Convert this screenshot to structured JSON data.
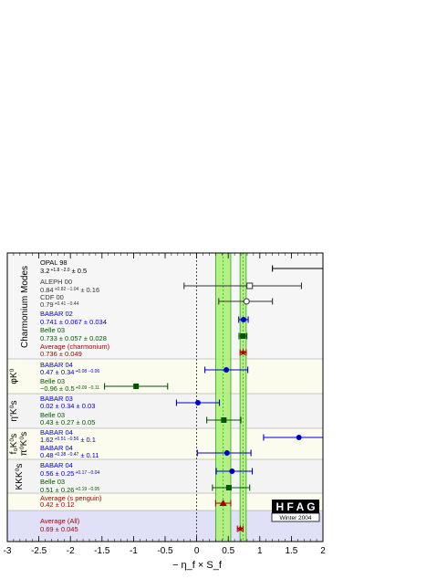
{
  "chart_data": {
    "type": "scatter",
    "xlabel": "− η_f × S_f",
    "xlim": [
      -3,
      2
    ],
    "x_ticks": [
      "-3",
      "-2.5",
      "-2",
      "-1.5",
      "-1",
      "-0.5",
      "0",
      "0.5",
      "1",
      "1.5",
      "2"
    ],
    "categories": [
      "Charmonium Modes",
      "φK⁰",
      "η′K⁰s",
      "f₀K⁰s",
      "π⁰K⁰s",
      "KKK⁰s"
    ],
    "bands": [
      {
        "center": 0.42,
        "low": 0.3,
        "high": 0.54
      },
      {
        "center": 0.736,
        "low": 0.687,
        "high": 0.785
      }
    ],
    "logo": {
      "text": "H F A G",
      "subtitle": "Winter 2004"
    },
    "points": [
      {
        "name": "OPAL 98",
        "value_text": "3.2",
        "err_text": "+1.8 −2.0",
        "extra_text": "± 0.5",
        "value": 3.2,
        "low": 1.2,
        "high": 5.0,
        "color": "#000000",
        "marker": "none"
      },
      {
        "name": "ALEPH 00",
        "value_text": "0.84",
        "err_text": "+0.82 −1.04",
        "extra_text": "± 0.16",
        "value": 0.84,
        "low": -0.2,
        "high": 1.66,
        "color": "#333333",
        "marker": "square-open"
      },
      {
        "name": "CDF 00",
        "value_text": "0.79",
        "err_text": "+0.41 −0.44",
        "extra_text": "",
        "value": 0.79,
        "low": 0.35,
        "high": 1.2,
        "color": "#333333",
        "marker": "circle-open"
      },
      {
        "name": "BABAR 02",
        "value_text": "0.741 ± 0.067 ± 0.034",
        "err_text": "",
        "extra_text": "",
        "value": 0.741,
        "low": 0.666,
        "high": 0.816,
        "color": "#0000cc",
        "marker": "circle"
      },
      {
        "name": "Belle 03",
        "value_text": "0.733 ± 0.057 ± 0.028",
        "err_text": "",
        "extra_text": "",
        "value": 0.733,
        "low": 0.67,
        "high": 0.796,
        "color": "#005500",
        "marker": "square"
      },
      {
        "name": "Average (charmonium)",
        "value_text": "0.736 ± 0.049",
        "err_text": "",
        "extra_text": "",
        "value": 0.736,
        "low": 0.687,
        "high": 0.785,
        "color": "#aa0000",
        "marker": "star"
      },
      {
        "name": "BABAR 04",
        "value_text": "0.47 ± 0.34",
        "err_text": "+0.08 −0.06",
        "extra_text": "",
        "value": 0.47,
        "low": 0.13,
        "high": 0.81,
        "color": "#0000cc",
        "marker": "circle"
      },
      {
        "name": "Belle 03",
        "value_text": "−0.96 ± 0.5",
        "err_text": "+0.09 −0.11",
        "extra_text": "",
        "value": -0.96,
        "low": -1.46,
        "high": -0.46,
        "color": "#005500",
        "marker": "square"
      },
      {
        "name": "BABAR 03",
        "value_text": "0.02 ± 0.34 ± 0.03",
        "err_text": "",
        "extra_text": "",
        "value": 0.02,
        "low": -0.32,
        "high": 0.36,
        "color": "#0000cc",
        "marker": "circle"
      },
      {
        "name": "Belle 03",
        "value_text": "0.43 ± 0.27 ± 0.05",
        "err_text": "",
        "extra_text": "",
        "value": 0.43,
        "low": 0.16,
        "high": 0.7,
        "color": "#005500",
        "marker": "square"
      },
      {
        "name": "BABAR 04",
        "value_text": "1.62",
        "err_text": "+0.51 −0.56",
        "extra_text": "± 0.1",
        "value": 1.62,
        "low": 1.06,
        "high": 2.13,
        "color": "#0000cc",
        "marker": "circle"
      },
      {
        "name": "BABAR 04",
        "value_text": "0.48",
        "err_text": "+0.38 −0.47",
        "extra_text": "± 0.11",
        "value": 0.48,
        "low": 0.01,
        "high": 0.86,
        "color": "#0000cc",
        "marker": "circle"
      },
      {
        "name": "BABAR 04",
        "value_text": "0.56 ± 0.25",
        "err_text": "+0.17 −0.04",
        "extra_text": "",
        "value": 0.56,
        "low": 0.31,
        "high": 0.88,
        "color": "#0000cc",
        "marker": "circle"
      },
      {
        "name": "Belle 03",
        "value_text": "0.51 ± 0.26",
        "err_text": "+0.19 −0.05",
        "extra_text": "",
        "value": 0.51,
        "low": 0.25,
        "high": 0.84,
        "color": "#005500",
        "marker": "square"
      },
      {
        "name": "Average (s penguin)",
        "value_text": "0.42 ± 0.12",
        "err_text": "",
        "extra_text": "",
        "value": 0.42,
        "low": 0.3,
        "high": 0.54,
        "color": "#aa0000",
        "marker": "triangle"
      },
      {
        "name": "Average (All)",
        "value_text": "0.69 ± 0.045",
        "err_text": "",
        "extra_text": "",
        "value": 0.69,
        "low": 0.645,
        "high": 0.735,
        "color": "#aa0000",
        "marker": "star"
      }
    ]
  }
}
